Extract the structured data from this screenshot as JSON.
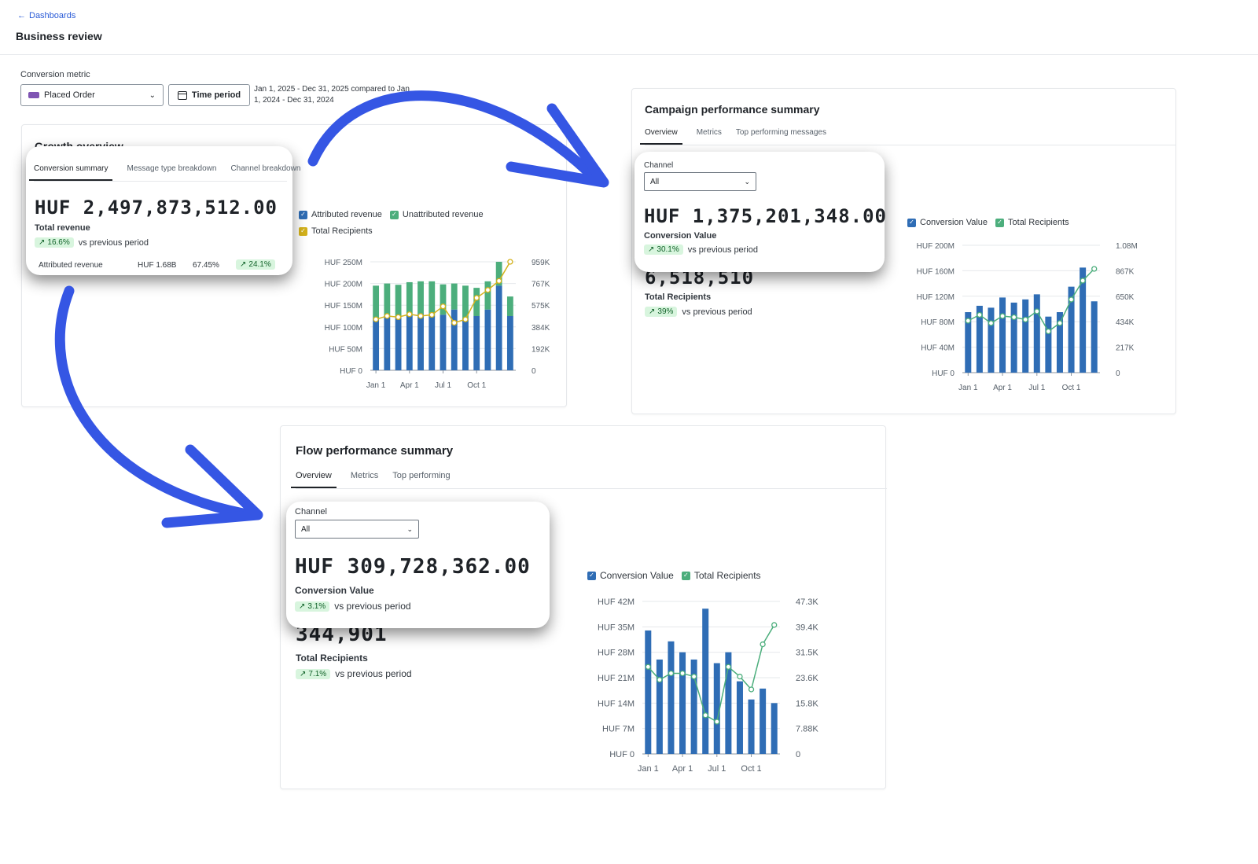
{
  "header": {
    "back_label": "Dashboards",
    "title": "Business review"
  },
  "filters": {
    "label": "Conversion metric",
    "metric_value": "Placed Order",
    "time_period_label": "Time period",
    "date_range": "Jan 1, 2025 - Dec 31, 2025 compared to Jan 1, 2024 - Dec 31, 2024"
  },
  "growth": {
    "title": "Growth overview",
    "tabs": [
      "Conversion summary",
      "Message type breakdown",
      "Channel breakdown"
    ],
    "total_value": "HUF 2,497,873,512.00",
    "total_label": "Total revenue",
    "delta_pct": "16.6%",
    "delta_text": "vs previous period",
    "row": {
      "label": "Attributed revenue",
      "value": "HUF 1.68B",
      "share": "67.45%",
      "delta": "24.1%"
    },
    "legend": [
      {
        "label": "Attributed revenue",
        "color": "#2f6db5"
      },
      {
        "label": "Unattributed revenue",
        "color": "#4cae7c"
      },
      {
        "label": "Total Recipients",
        "color": "#d4b21c"
      }
    ]
  },
  "campaign": {
    "title": "Campaign performance summary",
    "tabs": [
      "Overview",
      "Metrics",
      "Top performing messages"
    ],
    "channel_label": "Channel",
    "channel_value": "All",
    "value": "HUF 1,375,201,348.00",
    "value_label": "Conversion Value",
    "value_delta": "30.1%",
    "value_delta_text": "vs previous period",
    "recipients": "6,518,510",
    "recipients_label": "Total Recipients",
    "recipients_delta": "39%",
    "recipients_delta_text": "vs previous period",
    "legend": [
      {
        "label": "Conversion Value",
        "color": "#2f6db5"
      },
      {
        "label": "Total Recipients",
        "color": "#4cae7c"
      }
    ]
  },
  "flow": {
    "title": "Flow performance summary",
    "tabs": [
      "Overview",
      "Metrics",
      "Top performing"
    ],
    "channel_label": "Channel",
    "channel_value": "All",
    "value": "HUF 309,728,362.00",
    "value_label": "Conversion Value",
    "value_delta": "3.1%",
    "value_delta_text": "vs previous period",
    "recipients": "344,901",
    "recipients_label": "Total Recipients",
    "recipients_delta": "7.1%",
    "recipients_delta_text": "vs previous period",
    "legend": [
      {
        "label": "Conversion Value",
        "color": "#2f6db5"
      },
      {
        "label": "Total Recipients",
        "color": "#4cae7c"
      }
    ]
  },
  "chart_data": [
    {
      "type": "bar",
      "stacked": true,
      "x_ticks": [
        "Jan 1",
        "Apr 1",
        "Jul 1",
        "Oct 1"
      ],
      "y_left_ticks": [
        "HUF 250M",
        "HUF 200M",
        "HUF 150M",
        "HUF 100M",
        "HUF 50M",
        "HUF 0"
      ],
      "y_right_ticks": [
        "959K",
        "767K",
        "575K",
        "384K",
        "192K",
        "0"
      ],
      "ylim": [
        0,
        250
      ],
      "y2lim": [
        0,
        959
      ],
      "series": [
        {
          "name": "Attributed revenue",
          "values": [
            120,
            125,
            122,
            128,
            130,
            125,
            128,
            140,
            120,
            125,
            140,
            195,
            125
          ]
        },
        {
          "name": "Unattributed revenue",
          "values": [
            75,
            75,
            75,
            75,
            75,
            80,
            70,
            60,
            75,
            65,
            65,
            55,
            45
          ]
        },
        {
          "name": "Total Recipients",
          "values": [
            450,
            480,
            470,
            495,
            480,
            490,
            565,
            420,
            450,
            640,
            710,
            790,
            959
          ]
        }
      ]
    },
    {
      "type": "bar",
      "x_ticks": [
        "Jan 1",
        "Apr 1",
        "Jul 1",
        "Oct 1"
      ],
      "y_left_ticks": [
        "HUF 200M",
        "HUF 160M",
        "HUF 120M",
        "HUF 80M",
        "HUF 40M",
        "HUF 0"
      ],
      "y_right_ticks": [
        "1.08M",
        "867K",
        "650K",
        "434K",
        "217K",
        "0"
      ],
      "ylim": [
        0,
        200
      ],
      "y2lim": [
        0,
        1080
      ],
      "series": [
        {
          "name": "Conversion Value",
          "values": [
            95,
            105,
            102,
            118,
            110,
            115,
            123,
            88,
            95,
            135,
            165,
            112
          ]
        },
        {
          "name": "Total Recipients",
          "values": [
            440,
            490,
            420,
            480,
            470,
            450,
            520,
            350,
            420,
            620,
            780,
            880
          ]
        }
      ]
    },
    {
      "type": "bar",
      "x_ticks": [
        "Jan 1",
        "Apr 1",
        "Jul 1",
        "Oct 1"
      ],
      "y_left_ticks": [
        "HUF 42M",
        "HUF 35M",
        "HUF 28M",
        "HUF 21M",
        "HUF 14M",
        "HUF 7M",
        "HUF 0"
      ],
      "y_right_ticks": [
        "47.3K",
        "39.4K",
        "31.5K",
        "23.6K",
        "15.8K",
        "7.88K",
        "0"
      ],
      "ylim": [
        0,
        42
      ],
      "y2lim": [
        0,
        47.3
      ],
      "series": [
        {
          "name": "Conversion Value",
          "values": [
            34,
            26,
            31,
            28,
            26,
            40,
            25,
            28,
            20,
            15,
            18,
            14
          ]
        },
        {
          "name": "Total Recipients",
          "values": [
            27,
            23,
            25,
            25,
            24,
            12,
            10,
            27,
            24,
            20,
            34,
            40
          ]
        }
      ]
    }
  ]
}
